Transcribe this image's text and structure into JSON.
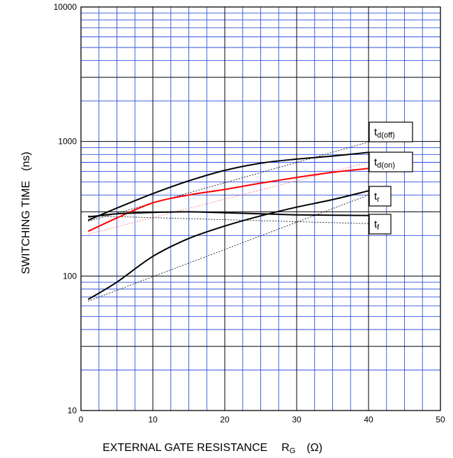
{
  "chart_data": {
    "type": "line",
    "title": "",
    "xlabel": "EXTERNAL GATE RESISTANCE",
    "xlabel_symbol": "R",
    "xlabel_symbol_sub": "G",
    "xlabel_unit": "(Ω)",
    "ylabel": "SWITCHING TIME",
    "ylabel_unit": "(ns)",
    "xlim": [
      0,
      50
    ],
    "ylim": [
      10,
      10000
    ],
    "yscale": "log",
    "grid": true,
    "x_ticks": [
      "0",
      "10",
      "20",
      "30",
      "40",
      "50"
    ],
    "y_ticks": [
      "10",
      "100",
      "1000",
      "10000"
    ],
    "colors": {
      "grid_major": "#000000",
      "grid_minor": "#2f4fe0",
      "black_series": "#000000",
      "red_series": "#ff0000",
      "fit_red": "#ff6a6a"
    },
    "series": [
      {
        "name": "t_d(off)",
        "label_main": "t",
        "label_sub": "d(off)",
        "color": "#000000",
        "x": [
          1,
          5,
          10,
          15,
          20,
          25,
          30,
          35,
          40
        ],
        "y": [
          260,
          320,
          410,
          510,
          610,
          690,
          740,
          780,
          830
        ],
        "fit": [
          [
            1,
            255
          ],
          [
            40,
            990
          ]
        ]
      },
      {
        "name": "t_d(on)",
        "label_main": "t",
        "label_sub": "d(on)",
        "color": "#ff0000",
        "x": [
          1,
          5,
          10,
          15,
          20,
          25,
          30,
          35,
          40
        ],
        "y": [
          215,
          270,
          350,
          400,
          440,
          490,
          540,
          590,
          630
        ],
        "fit": [
          [
            1,
            205
          ],
          [
            40,
            700
          ]
        ]
      },
      {
        "name": "t_r",
        "label_main": "t",
        "label_sub": "r",
        "color": "#000000",
        "x": [
          1,
          5,
          10,
          15,
          20,
          25,
          30,
          35,
          40
        ],
        "y": [
          67,
          90,
          140,
          190,
          235,
          280,
          325,
          370,
          430
        ],
        "fit": [
          [
            1,
            65
          ],
          [
            40,
            400
          ]
        ]
      },
      {
        "name": "t_f",
        "label_main": "t",
        "label_sub": "f",
        "color": "#000000",
        "x": [
          1,
          5,
          10,
          15,
          20,
          25,
          30,
          35,
          40
        ],
        "y": [
          275,
          290,
          297,
          300,
          295,
          290,
          285,
          283,
          282
        ],
        "fit": [
          [
            1,
            280
          ],
          [
            40,
            245
          ]
        ]
      }
    ]
  }
}
